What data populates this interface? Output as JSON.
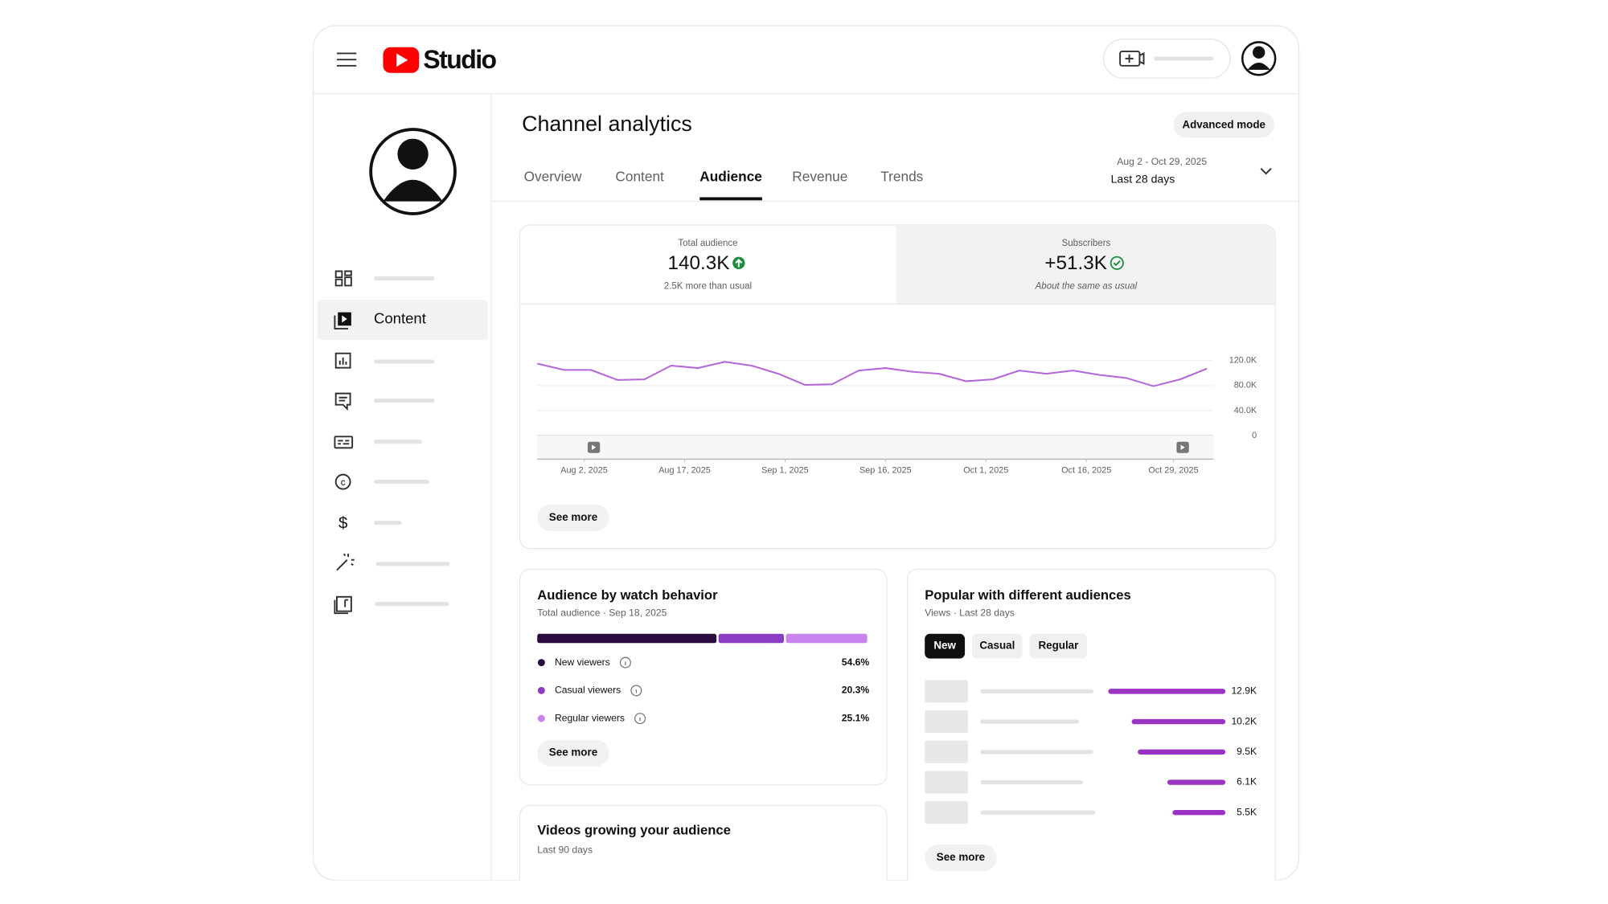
{
  "header": {
    "logo": "Studio"
  },
  "sidebar": {
    "active_item": "Content"
  },
  "page": {
    "title": "Channel analytics",
    "advanced_button": "Advanced mode",
    "tabs": [
      "Overview",
      "Content",
      "Audience",
      "Revenue",
      "Trends"
    ],
    "date_range": "Aug 2 - Oct 29, 2025",
    "date_label": "Last 28 days"
  },
  "metrics": [
    {
      "label": "Total audience",
      "value": "140.3K",
      "note": "2.5K more than usual"
    },
    {
      "label": "Subscribers",
      "value": "+51.3K",
      "note": "About the same as usual"
    }
  ],
  "chart_data": {
    "type": "line",
    "color": "#b566d9",
    "grid": true,
    "x": [
      "2025-07-26",
      "2025-07-30",
      "2025-08-03",
      "2025-08-07",
      "2025-08-11",
      "2025-08-15",
      "2025-08-19",
      "2025-08-23",
      "2025-08-27",
      "2025-08-31",
      "2025-09-04",
      "2025-09-08",
      "2025-09-12",
      "2025-09-16",
      "2025-09-20",
      "2025-09-24",
      "2025-09-28",
      "2025-10-02",
      "2025-10-06",
      "2025-10-10",
      "2025-10-14",
      "2025-10-18",
      "2025-10-22",
      "2025-10-26",
      "2025-10-30",
      "2025-11-03"
    ],
    "values": [
      115000,
      105000,
      105000,
      89000,
      90000,
      112000,
      108000,
      118000,
      112000,
      99000,
      81000,
      82000,
      104000,
      108000,
      102000,
      99000,
      87000,
      90000,
      104000,
      99000,
      104000,
      97000,
      92000,
      79000,
      90000,
      107000
    ],
    "xlim": [
      "2025-07-26",
      "2025-11-04"
    ],
    "xticks": [
      {
        "value": "2025-08-02",
        "label": "Aug 2, 2025"
      },
      {
        "value": "2025-08-17",
        "label": "Aug 17, 2025"
      },
      {
        "value": "2025-09-01",
        "label": "Sep 1, 2025"
      },
      {
        "value": "2025-09-16",
        "label": "Sep 16, 2025"
      },
      {
        "value": "2025-10-01",
        "label": "Oct 1, 2025"
      },
      {
        "value": "2025-10-16",
        "label": "Oct 16, 2025"
      },
      {
        "value": "2025-10-29",
        "label": "Oct 29, 2025"
      }
    ],
    "ylim": [
      0,
      120000
    ],
    "yticks": [
      0,
      {
        "value": 40000,
        "label": "40.0K"
      },
      {
        "value": 80000,
        "label": "80.0K"
      },
      {
        "value": 120000,
        "label": "120.0K"
      }
    ]
  },
  "see_more": "See more",
  "watch_behavior": {
    "title": "Audience by watch behavior",
    "subtitle": "Total audience · Sep 18, 2025",
    "categories": [
      "New viewers",
      "Casual viewers",
      "Regular viewers"
    ],
    "values": [
      54.6,
      20.3,
      25.1
    ],
    "value_labels": [
      "54.6%",
      "20.3%",
      "25.1%"
    ],
    "colors": [
      "#2a0b3f",
      "#8a3cc2",
      "#c983ee"
    ]
  },
  "videos_card": {
    "title": "Videos growing your audience",
    "subtitle": "Last 90 days"
  },
  "popular": {
    "title": "Popular with different audiences",
    "subtitle": "Views · Last 28 days",
    "filters": [
      "New",
      "Casual",
      "Regular"
    ],
    "color": "#9a32c4",
    "values": [
      12900,
      10200,
      9500,
      6100,
      5500
    ],
    "value_labels": [
      "12.9K",
      "10.2K",
      "9.5K",
      "6.1K",
      "5.5K"
    ]
  }
}
